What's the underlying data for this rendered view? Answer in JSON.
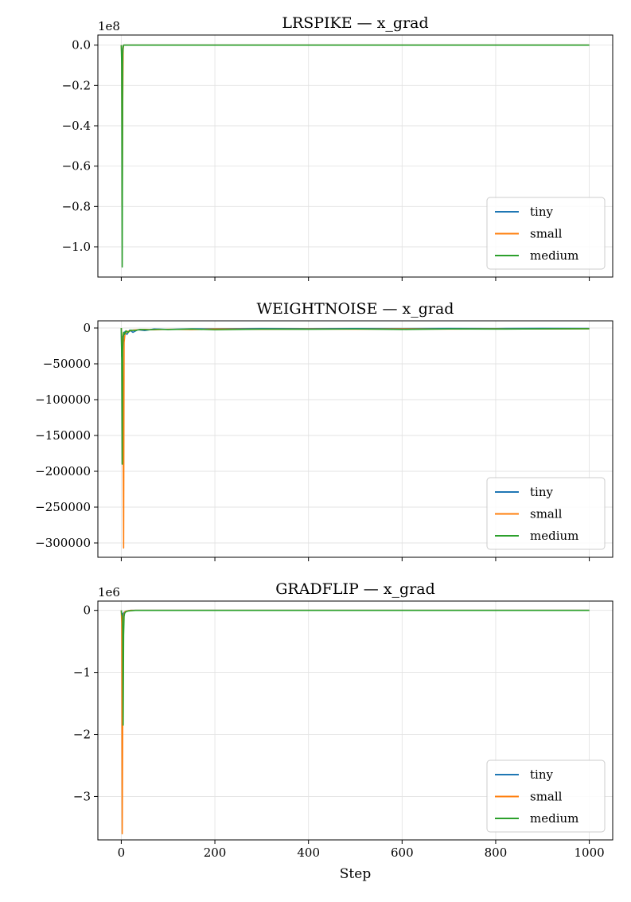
{
  "chart_data": [
    {
      "type": "line",
      "title": "LRSPIKE — x_grad",
      "xlabel": "",
      "ylabel": "",
      "offset_text": "1e8",
      "xlim": [
        -50,
        1050
      ],
      "ylim": [
        -1.15,
        0.05
      ],
      "yticks": [
        {
          "value": 0.0,
          "label": "0.0"
        },
        {
          "value": -0.2,
          "label": "−0.2"
        },
        {
          "value": -0.4,
          "label": "−0.4"
        },
        {
          "value": -0.6,
          "label": "−0.6"
        },
        {
          "value": -0.8,
          "label": "−0.8"
        },
        {
          "value": -1.0,
          "label": "−1.0"
        }
      ],
      "xticks": [
        {
          "value": 0,
          "label": ""
        },
        {
          "value": 200,
          "label": ""
        },
        {
          "value": 400,
          "label": ""
        },
        {
          "value": 600,
          "label": ""
        },
        {
          "value": 800,
          "label": ""
        },
        {
          "value": 1000,
          "label": ""
        }
      ],
      "grid": true,
      "legend": "lower-right",
      "series": [
        {
          "name": "tiny",
          "color": "#1f77b4",
          "x": [
            0,
            1,
            2,
            3,
            4,
            5,
            10,
            100,
            1000
          ],
          "y": [
            0,
            -0.02,
            -0.5,
            -0.1,
            -0.01,
            0,
            0,
            0,
            0
          ]
        },
        {
          "name": "small",
          "color": "#ff7f0e",
          "x": [
            0,
            1,
            2,
            3,
            4,
            5,
            10,
            100,
            1000
          ],
          "y": [
            0,
            -0.05,
            -0.8,
            -0.3,
            -0.02,
            0,
            0,
            0,
            0
          ]
        },
        {
          "name": "medium",
          "color": "#2ca02c",
          "x": [
            0,
            1,
            2,
            3,
            4,
            5,
            10,
            100,
            1000
          ],
          "y": [
            0,
            -0.1,
            -1.1,
            -0.05,
            -0.01,
            0,
            0,
            0,
            0
          ]
        }
      ]
    },
    {
      "type": "line",
      "title": "WEIGHTNOISE — x_grad",
      "xlabel": "",
      "ylabel": "",
      "offset_text": "",
      "xlim": [
        -50,
        1050
      ],
      "ylim": [
        -320000,
        10000
      ],
      "yticks": [
        {
          "value": 0,
          "label": "0"
        },
        {
          "value": -50000,
          "label": "−50000"
        },
        {
          "value": -100000,
          "label": "−100000"
        },
        {
          "value": -150000,
          "label": "−150000"
        },
        {
          "value": -200000,
          "label": "−200000"
        },
        {
          "value": -250000,
          "label": "−250000"
        },
        {
          "value": -300000,
          "label": "−300000"
        }
      ],
      "xticks": [
        {
          "value": 0,
          "label": ""
        },
        {
          "value": 200,
          "label": ""
        },
        {
          "value": 400,
          "label": ""
        },
        {
          "value": 600,
          "label": ""
        },
        {
          "value": 800,
          "label": ""
        },
        {
          "value": 1000,
          "label": ""
        }
      ],
      "grid": true,
      "legend": "lower-right",
      "series": [
        {
          "name": "tiny",
          "color": "#1f77b4",
          "x": [
            0,
            1,
            2,
            3,
            5,
            8,
            12,
            18,
            25,
            35,
            50,
            70,
            100,
            150,
            200,
            300,
            400,
            500,
            600,
            700,
            800,
            900,
            1000
          ],
          "y": [
            0,
            -40000,
            -12000,
            -25000,
            -8000,
            -5000,
            -9000,
            -3000,
            -6000,
            -2500,
            -3500,
            -1500,
            -2000,
            -1200,
            -1000,
            -800,
            -900,
            -700,
            -800,
            -600,
            -700,
            -500,
            -600
          ]
        },
        {
          "name": "small",
          "color": "#ff7f0e",
          "x": [
            0,
            1,
            2,
            3,
            4,
            5,
            6,
            8,
            12,
            18,
            25,
            35,
            50,
            70,
            100,
            150,
            200,
            300,
            400,
            500,
            600,
            700,
            800,
            900,
            1000
          ],
          "y": [
            0,
            -10000,
            -30000,
            -60000,
            -150000,
            -307000,
            -20000,
            -8000,
            -5000,
            -4000,
            -3000,
            -2500,
            -2000,
            -2500,
            -1800,
            -2200,
            -1500,
            -1700,
            -1400,
            -1600,
            -1300,
            -1500,
            -1200,
            -1400,
            -1000
          ]
        },
        {
          "name": "medium",
          "color": "#2ca02c",
          "x": [
            0,
            1,
            2,
            3,
            4,
            5,
            7,
            10,
            15,
            20,
            30,
            40,
            60,
            80,
            100,
            150,
            200,
            300,
            400,
            500,
            600,
            700,
            800,
            900,
            1000
          ],
          "y": [
            0,
            -45000,
            -190000,
            -30000,
            -12000,
            -6000,
            -9000,
            -4000,
            -6000,
            -3000,
            -3500,
            -2000,
            -2500,
            -1800,
            -2200,
            -1500,
            -2500,
            -1600,
            -1800,
            -1400,
            -2000,
            -1300,
            -1500,
            -1200,
            -1000
          ]
        }
      ]
    },
    {
      "type": "line",
      "title": "GRADFLIP — x_grad",
      "xlabel": "Step",
      "ylabel": "",
      "offset_text": "1e6",
      "xlim": [
        -50,
        1050
      ],
      "ylim": [
        -3.7,
        0.15
      ],
      "yticks": [
        {
          "value": 0,
          "label": "0"
        },
        {
          "value": -1,
          "label": "−1"
        },
        {
          "value": -2,
          "label": "−2"
        },
        {
          "value": -3,
          "label": "−3"
        }
      ],
      "xticks": [
        {
          "value": 0,
          "label": "0"
        },
        {
          "value": 200,
          "label": "200"
        },
        {
          "value": 400,
          "label": "400"
        },
        {
          "value": 600,
          "label": "600"
        },
        {
          "value": 800,
          "label": "800"
        },
        {
          "value": 1000,
          "label": "1000"
        }
      ],
      "grid": true,
      "legend": "lower-right",
      "series": [
        {
          "name": "tiny",
          "color": "#1f77b4",
          "x": [
            0,
            1,
            2,
            3,
            4,
            5,
            8,
            12,
            20,
            50,
            100,
            1000
          ],
          "y": [
            0,
            -0.1,
            -0.05,
            -0.3,
            -0.08,
            -0.04,
            -0.02,
            -0.01,
            0,
            0,
            0,
            0
          ]
        },
        {
          "name": "small",
          "color": "#ff7f0e",
          "x": [
            0,
            1,
            2,
            3,
            4,
            5,
            6,
            8,
            12,
            20,
            50,
            100,
            1000
          ],
          "y": [
            0,
            -0.2,
            -3.6,
            -1.9,
            -0.5,
            -0.1,
            -0.05,
            -0.02,
            -0.01,
            0,
            0,
            0,
            0
          ]
        },
        {
          "name": "medium",
          "color": "#2ca02c",
          "x": [
            0,
            1,
            2,
            3,
            4,
            5,
            6,
            7,
            10,
            15,
            30,
            100,
            1000
          ],
          "y": [
            0,
            -0.05,
            -0.1,
            -0.3,
            -1.85,
            -0.4,
            -0.1,
            -0.05,
            -0.02,
            -0.01,
            0,
            0,
            0
          ]
        }
      ]
    }
  ]
}
